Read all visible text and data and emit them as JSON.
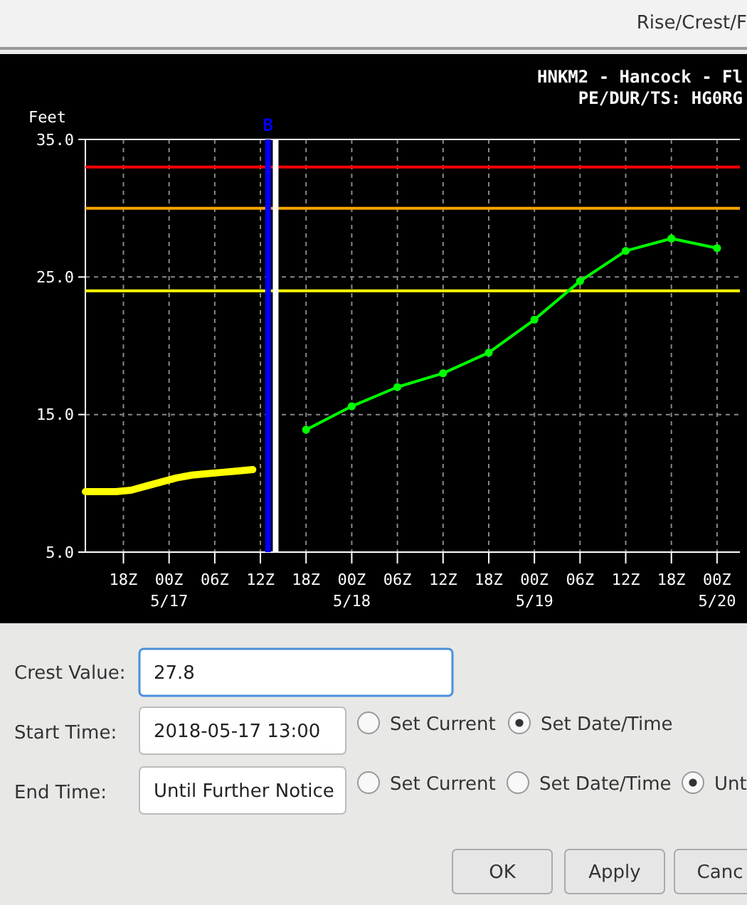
{
  "chart_data": [
    {
      "type": "line",
      "title": "HNKM2 - Hancock - Fl",
      "subtitle": "PE/DUR/TS: HG0RG",
      "ylabel": "Feet",
      "xlim": [
        "2018-05-16T13:00",
        "2018-05-20T03:00"
      ],
      "ylim": [
        5,
        35
      ],
      "yticks": [
        {
          "value": 5,
          "label": "5.0"
        },
        {
          "value": 15,
          "label": "15.0"
        },
        {
          "value": 25,
          "label": "25.0"
        },
        {
          "value": 35,
          "label": "35.0"
        }
      ],
      "xticks": [
        {
          "value": "2018-05-16T18:00",
          "label": "18Z"
        },
        {
          "value": "2018-05-17T00:00",
          "label": "00Z\n5/17"
        },
        {
          "value": "2018-05-17T06:00",
          "label": "06Z"
        },
        {
          "value": "2018-05-17T12:00",
          "label": "12Z"
        },
        {
          "value": "2018-05-17T18:00",
          "label": "18Z"
        },
        {
          "value": "2018-05-18T00:00",
          "label": "00Z\n5/18"
        },
        {
          "value": "2018-05-18T06:00",
          "label": "06Z"
        },
        {
          "value": "2018-05-18T12:00",
          "label": "12Z"
        },
        {
          "value": "2018-05-18T18:00",
          "label": "18Z"
        },
        {
          "value": "2018-05-19T00:00",
          "label": "00Z\n5/19"
        },
        {
          "value": "2018-05-19T06:00",
          "label": "06Z"
        },
        {
          "value": "2018-05-19T12:00",
          "label": "12Z"
        },
        {
          "value": "2018-05-19T18:00",
          "label": "18Z"
        },
        {
          "value": "2018-05-20T00:00",
          "label": "00Z\n5/20"
        }
      ],
      "grid": true,
      "series": [
        {
          "color": "#ffff00",
          "marker": "none",
          "x": [
            "2018-05-16T13:00",
            "2018-05-16T15:00",
            "2018-05-16T17:00",
            "2018-05-16T19:00",
            "2018-05-16T21:00",
            "2018-05-16T23:00",
            "2018-05-17T01:00",
            "2018-05-17T03:00",
            "2018-05-17T05:00",
            "2018-05-17T07:00",
            "2018-05-17T09:00",
            "2018-05-17T11:00"
          ],
          "values": [
            9.4,
            9.4,
            9.4,
            9.5,
            9.8,
            10.1,
            10.4,
            10.6,
            10.7,
            10.8,
            10.9,
            11.0
          ]
        },
        {
          "color": "#00ff00",
          "marker": "circle",
          "x": [
            "2018-05-17T18:00",
            "2018-05-18T00:00",
            "2018-05-18T06:00",
            "2018-05-18T12:00",
            "2018-05-18T18:00",
            "2018-05-19T00:00",
            "2018-05-19T06:00",
            "2018-05-19T12:00",
            "2018-05-19T18:00",
            "2018-05-20T00:00"
          ],
          "values": [
            13.9,
            15.6,
            17.0,
            18.0,
            19.5,
            21.9,
            24.7,
            26.9,
            27.8,
            27.1
          ]
        }
      ],
      "ref_lines": [
        {
          "axis": "y",
          "value": 33,
          "color": "#ff0000"
        },
        {
          "axis": "y",
          "value": 30,
          "color": "#ffa500"
        },
        {
          "axis": "y",
          "value": 24,
          "color": "#ffff00"
        },
        {
          "axis": "x",
          "value": "2018-05-17T13:00",
          "label": "B",
          "color": "#0000ff"
        },
        {
          "axis": "x",
          "value": "2018-05-17T14:00",
          "color": "#ffffff"
        }
      ]
    },
    {
      "type": "other",
      "title": "Rise/Crest/F",
      "annotations": [
        "Crest Value:",
        "27.8",
        "Start Time:",
        "2018-05-17 13:00",
        "Set Current",
        "Set Date/Time",
        "End Time:",
        "Until Further Notice",
        "Set Current",
        "Set Date/Time",
        "Unt",
        "OK",
        "Apply",
        "Canc"
      ]
    }
  ]
}
